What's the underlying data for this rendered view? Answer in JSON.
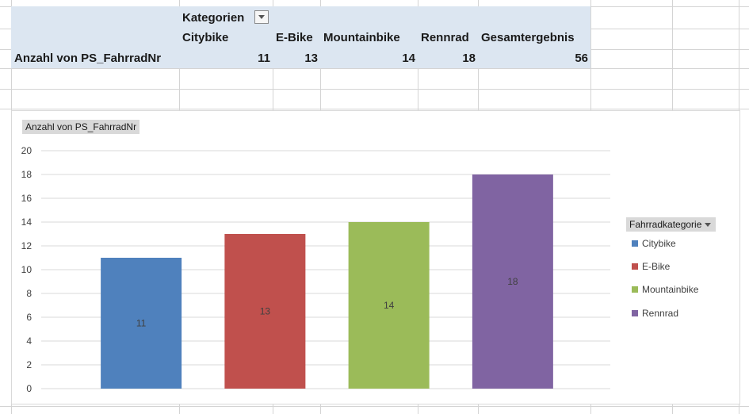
{
  "pivot": {
    "column_field_label": "Kategorien",
    "row_label": "Anzahl von PS_FahrradNr",
    "columns": [
      "Citybike",
      "E-Bike",
      "Mountainbike",
      "Rennrad",
      "Gesamtergebnis"
    ],
    "values": [
      "11",
      "13",
      "14",
      "18",
      "56"
    ]
  },
  "chart": {
    "value_field_button": "Anzahl von PS_FahrradNr",
    "legend_field_button": "Fahrradkategorie",
    "legend_items": [
      {
        "label": "Citybike",
        "color": "#4f81bd"
      },
      {
        "label": "E-Bike",
        "color": "#c0504d"
      },
      {
        "label": "Mountainbike",
        "color": "#9bbb59"
      },
      {
        "label": "Rennrad",
        "color": "#8064a2"
      }
    ]
  },
  "chart_data": {
    "type": "bar",
    "categories": [
      "Citybike",
      "E-Bike",
      "Mountainbike",
      "Rennrad"
    ],
    "values": [
      11,
      13,
      14,
      18
    ],
    "data_labels": [
      "11",
      "13",
      "14",
      "18"
    ],
    "colors": [
      "#4f81bd",
      "#c0504d",
      "#9bbb59",
      "#8064a2"
    ],
    "ylim": [
      0,
      20
    ],
    "yticks": [
      "0",
      "2",
      "4",
      "6",
      "8",
      "10",
      "12",
      "14",
      "16",
      "18",
      "20"
    ],
    "grid": true,
    "legend": "right"
  }
}
